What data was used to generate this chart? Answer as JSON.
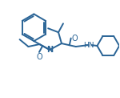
{
  "bg_color": "#ffffff",
  "line_color": "#2a6496",
  "lw": 1.4,
  "text_color": "#2a6496",
  "label_N": "N",
  "label_O1": "O",
  "label_O2": "O",
  "label_HN": "HN",
  "figsize": [
    1.5,
    1.22
  ],
  "dpi": 100
}
